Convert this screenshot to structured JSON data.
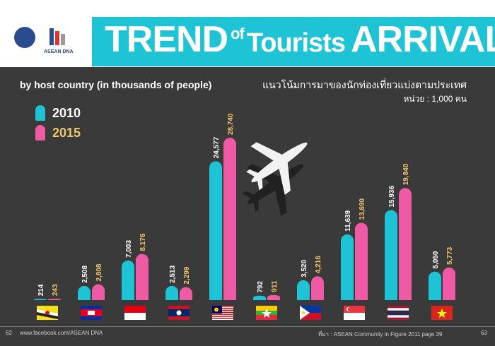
{
  "header": {
    "title_part1": "TREND",
    "title_part2": "of",
    "title_part3": "Tourists",
    "title_part4": "ARRIVAL",
    "logo_right_text": "ASEAN DNA"
  },
  "subtitle": "by host country (in thousands of people)",
  "thai_subtitle": "แนวโน้มการมาของนักท่องเที่ยวแบ่งตามประเทศ",
  "thai_unit": "หน่วย : 1,000 คน",
  "colors": {
    "series2010": "#1ec3d6",
    "series2015": "#ee5aa4",
    "label2010": "#ffffff",
    "label2015": "#f2c56b"
  },
  "chart_data": {
    "type": "bar",
    "title": "",
    "xlabel": "",
    "ylabel": "",
    "ylim": [
      0,
      30000
    ],
    "grid": false,
    "legend": "top-left",
    "categories": [
      "Brunei",
      "Cambodia",
      "Indonesia",
      "Laos",
      "Malaysia",
      "Myanmar",
      "Philippines",
      "Singapore",
      "Thailand",
      "Vietnam"
    ],
    "series": [
      {
        "name": "2010",
        "values": [
          214,
          2508,
          7003,
          2513,
          24577,
          792,
          3520,
          11639,
          15936,
          5050
        ],
        "labels": [
          "214",
          "2,508",
          "7,003",
          "2,513",
          "24,577",
          "792",
          "3,520",
          "11,639",
          "15,936",
          "5,050"
        ]
      },
      {
        "name": "2015",
        "values": [
          243,
          2808,
          8176,
          2299,
          28740,
          911,
          4216,
          13690,
          19840,
          5773
        ],
        "labels": [
          "243",
          "2,808",
          "8,176",
          "2,299",
          "28,740",
          "911",
          "4,216",
          "13,690",
          "19,840",
          "5,773"
        ]
      }
    ]
  },
  "flag_icons": [
    "brunei-flag-icon",
    "cambodia-flag-icon",
    "indonesia-flag-icon",
    "laos-flag-icon",
    "malaysia-flag-icon",
    "myanmar-flag-icon",
    "philippines-flag-icon",
    "singapore-flag-icon",
    "thailand-flag-icon",
    "vietnam-flag-icon"
  ],
  "footer": {
    "page_left": "62",
    "url": "www.facebook.com/ASEAN DNA",
    "source": "ที่มา : ASEAN Community in Figure 2011 page 39",
    "page_right": "63"
  }
}
